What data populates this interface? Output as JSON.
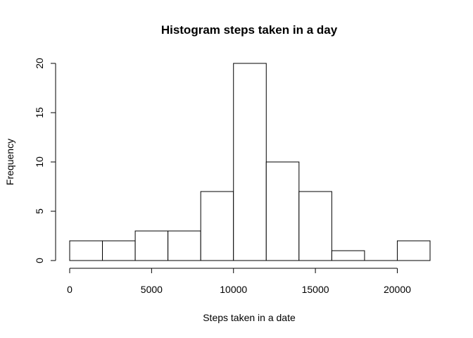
{
  "chart_data": {
    "type": "bar",
    "title": "Histogram steps taken in a day",
    "xlabel": "Steps taken in a date",
    "ylabel": "Frequency",
    "bins": [
      {
        "start": 0,
        "end": 2000,
        "count": 2
      },
      {
        "start": 2000,
        "end": 4000,
        "count": 2
      },
      {
        "start": 4000,
        "end": 6000,
        "count": 3
      },
      {
        "start": 6000,
        "end": 8000,
        "count": 3
      },
      {
        "start": 8000,
        "end": 10000,
        "count": 7
      },
      {
        "start": 10000,
        "end": 12000,
        "count": 20
      },
      {
        "start": 12000,
        "end": 14000,
        "count": 10
      },
      {
        "start": 14000,
        "end": 16000,
        "count": 7
      },
      {
        "start": 16000,
        "end": 18000,
        "count": 1
      },
      {
        "start": 18000,
        "end": 20000,
        "count": 0
      },
      {
        "start": 20000,
        "end": 22000,
        "count": 2
      }
    ],
    "xticks": [
      0,
      5000,
      10000,
      15000,
      20000
    ],
    "xtick_labels": [
      "0",
      "5000",
      "10000",
      "15000",
      "20000"
    ],
    "yticks": [
      0,
      5,
      10,
      15,
      20
    ],
    "ytick_labels": [
      "0",
      "5",
      "10",
      "15",
      "20"
    ],
    "xlim": [
      0,
      22000
    ],
    "ylim": [
      0,
      20
    ],
    "grid": false,
    "legend": "none",
    "bar_fill": "#ffffff",
    "bar_stroke": "#000000"
  }
}
